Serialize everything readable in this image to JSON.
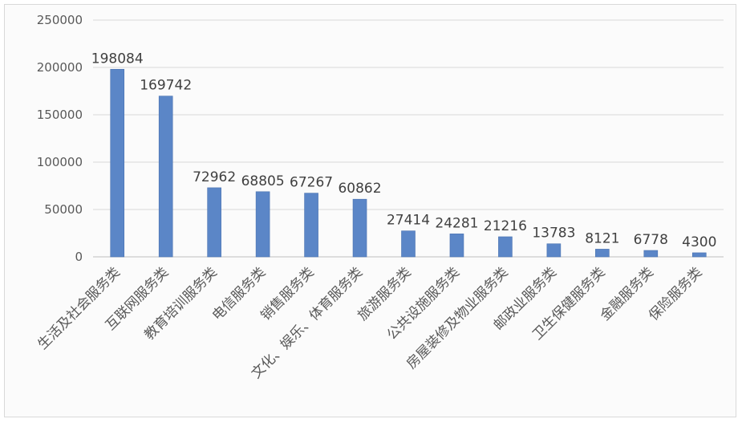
{
  "chart_data": {
    "type": "bar",
    "title": "",
    "xlabel": "",
    "ylabel": "",
    "ylim": [
      0,
      250000
    ],
    "yticks": [
      0,
      50000,
      100000,
      150000,
      200000,
      250000
    ],
    "ytick_labels": [
      "0",
      "50000",
      "100000",
      "150000",
      "200000",
      "250000"
    ],
    "grid": true,
    "legend": "none",
    "bar_color": "#5b86c7",
    "categories": [
      "生活及社会服务类",
      "互联网服务类",
      "教育培训服务类",
      "电信服务类",
      "销售服务类",
      "文化、娱乐、体育服务类",
      "旅游服务类",
      "公共设施服务类",
      "房屋装修及物业服务类",
      "邮政业服务类",
      "卫生保健服务类",
      "金融服务类",
      "保险服务类"
    ],
    "values": [
      198084,
      169742,
      72962,
      68805,
      67267,
      60862,
      27414,
      24281,
      21216,
      13783,
      8121,
      6778,
      4300
    ],
    "data_labels": [
      "198084",
      "169742",
      "72962",
      "68805",
      "67267",
      "60862",
      "27414",
      "24281",
      "21216",
      "13783",
      "8121",
      "6778",
      "4300"
    ]
  }
}
